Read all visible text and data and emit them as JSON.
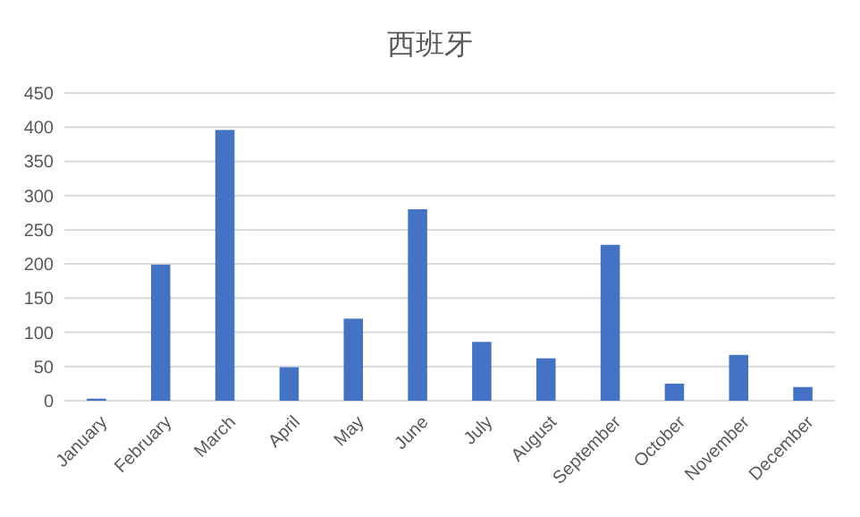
{
  "chart_data": {
    "type": "bar",
    "title": "西班牙",
    "categories": [
      "January",
      "February",
      "March",
      "April",
      "May",
      "June",
      "July",
      "August",
      "September",
      "October",
      "November",
      "December"
    ],
    "values": [
      3,
      199,
      396,
      49,
      120,
      280,
      86,
      62,
      228,
      25,
      67,
      20
    ],
    "color": "#4472c4",
    "ylim": [
      0,
      450
    ],
    "yticks": [
      0,
      50,
      100,
      150,
      200,
      250,
      300,
      350,
      400,
      450
    ],
    "grid": "y"
  }
}
